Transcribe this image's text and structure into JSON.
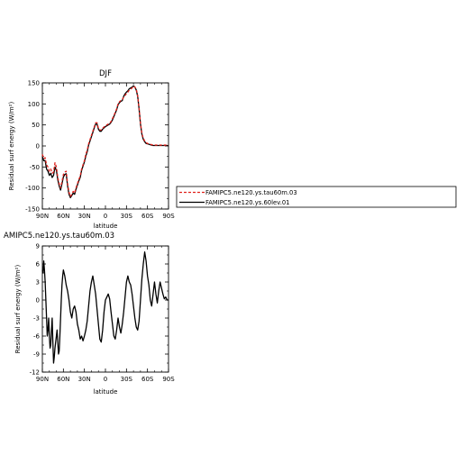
{
  "chart_data": [
    {
      "type": "line",
      "title": "DJF",
      "ylabel": "Residual surf energy (W/m²)",
      "xlabel": "latitude",
      "xlim": [
        90,
        -90
      ],
      "ylim": [
        -150,
        150
      ],
      "x_ticks": [
        {
          "value": 90,
          "label": "90N"
        },
        {
          "value": 60,
          "label": "60N"
        },
        {
          "value": 30,
          "label": "30N"
        },
        {
          "value": 0,
          "label": "0"
        },
        {
          "value": -30,
          "label": "30S"
        },
        {
          "value": -60,
          "label": "60S"
        },
        {
          "value": -90,
          "label": "90S"
        }
      ],
      "y_ticks": [
        {
          "value": 150,
          "label": "150"
        },
        {
          "value": 100,
          "label": "100"
        },
        {
          "value": 50,
          "label": "50"
        },
        {
          "value": 0,
          "label": "0"
        },
        {
          "value": -50,
          "label": "-50"
        },
        {
          "value": -100,
          "label": "-100"
        },
        {
          "value": -150,
          "label": "-150"
        }
      ],
      "legend_placement": "right",
      "series": [
        {
          "name": "FAMIPC5.ne120.ys.tau60m.03",
          "color": "#e0201b",
          "dash": "dashed",
          "x": [
            90,
            88,
            86,
            84,
            82,
            80,
            78,
            76,
            74,
            72,
            70,
            68,
            66,
            64,
            62,
            60,
            58,
            56,
            54,
            52,
            50,
            48,
            46,
            44,
            42,
            40,
            38,
            36,
            34,
            32,
            30,
            28,
            26,
            24,
            22,
            20,
            18,
            16,
            14,
            12,
            10,
            8,
            6,
            4,
            2,
            0,
            -2,
            -4,
            -6,
            -8,
            -10,
            -12,
            -14,
            -16,
            -18,
            -20,
            -22,
            -24,
            -26,
            -28,
            -30,
            -32,
            -34,
            -36,
            -38,
            -40,
            -42,
            -44,
            -46,
            -48,
            -50,
            -52,
            -54,
            -56,
            -58,
            -60,
            -62,
            -64,
            -66,
            -68,
            -70,
            -72,
            -74,
            -76,
            -78,
            -80,
            -82,
            -84,
            -86,
            -88,
            -90
          ],
          "y": [
            -20,
            -30,
            -28,
            -45,
            -50,
            -60,
            -55,
            -65,
            -62,
            -40,
            -50,
            -75,
            -90,
            -100,
            -85,
            -68,
            -62,
            -60,
            -90,
            -110,
            -120,
            -115,
            -108,
            -112,
            -100,
            -90,
            -80,
            -72,
            -55,
            -45,
            -35,
            -20,
            -10,
            5,
            15,
            25,
            35,
            45,
            55,
            55,
            42,
            38,
            38,
            42,
            45,
            48,
            50,
            52,
            54,
            58,
            65,
            72,
            80,
            88,
            100,
            105,
            108,
            110,
            116,
            120,
            125,
            128,
            133,
            135,
            138,
            142,
            140,
            135,
            120,
            90,
            55,
            30,
            18,
            12,
            8,
            6,
            5,
            4,
            3,
            2,
            2,
            2,
            2,
            2,
            2,
            2,
            2,
            2,
            2,
            2,
            2
          ]
        },
        {
          "name": "FAMIPC5.ne120.ys.60lev.01",
          "color": "#000000",
          "dash": "solid",
          "x": [
            90,
            88,
            86,
            84,
            82,
            80,
            78,
            76,
            74,
            72,
            70,
            68,
            66,
            64,
            62,
            60,
            58,
            56,
            54,
            52,
            50,
            48,
            46,
            44,
            42,
            40,
            38,
            36,
            34,
            32,
            30,
            28,
            26,
            24,
            22,
            20,
            18,
            16,
            14,
            12,
            10,
            8,
            6,
            4,
            2,
            0,
            -2,
            -4,
            -6,
            -8,
            -10,
            -12,
            -14,
            -16,
            -18,
            -20,
            -22,
            -24,
            -26,
            -28,
            -30,
            -32,
            -34,
            -36,
            -38,
            -40,
            -42,
            -44,
            -46,
            -48,
            -50,
            -52,
            -54,
            -56,
            -58,
            -60,
            -62,
            -64,
            -66,
            -68,
            -70,
            -72,
            -74,
            -76,
            -78,
            -80,
            -82,
            -84,
            -86,
            -88,
            -90
          ],
          "y": [
            -25,
            -35,
            -35,
            -55,
            -60,
            -70,
            -65,
            -75,
            -70,
            -50,
            -58,
            -80,
            -95,
            -105,
            -90,
            -74,
            -68,
            -66,
            -95,
            -115,
            -123,
            -118,
            -112,
            -115,
            -103,
            -93,
            -83,
            -75,
            -58,
            -48,
            -38,
            -24,
            -14,
            2,
            12,
            22,
            32,
            43,
            52,
            52,
            40,
            35,
            35,
            40,
            43,
            46,
            48,
            50,
            52,
            56,
            62,
            70,
            78,
            86,
            98,
            103,
            106,
            108,
            118,
            124,
            128,
            131,
            136,
            138,
            140,
            143,
            140,
            133,
            118,
            88,
            52,
            28,
            16,
            10,
            6,
            5,
            4,
            3,
            2,
            1,
            1,
            1,
            1,
            1,
            1,
            1,
            1,
            1,
            1,
            1,
            1
          ]
        }
      ]
    },
    {
      "type": "line",
      "title": "AMIPC5.ne120.ys.tau60m.03",
      "ylabel": "Residual surf energy (W/m²)",
      "xlabel": "latitude",
      "xlim": [
        90,
        -90
      ],
      "ylim": [
        -12,
        9
      ],
      "x_ticks": [
        {
          "value": 90,
          "label": "90N"
        },
        {
          "value": 60,
          "label": "60N"
        },
        {
          "value": 30,
          "label": "30N"
        },
        {
          "value": 0,
          "label": "0"
        },
        {
          "value": -30,
          "label": "30S"
        },
        {
          "value": -60,
          "label": "60S"
        },
        {
          "value": -90,
          "label": "90S"
        }
      ],
      "y_ticks": [
        {
          "value": 9,
          "label": "9"
        },
        {
          "value": 6,
          "label": "6"
        },
        {
          "value": 3,
          "label": "3"
        },
        {
          "value": 0,
          "label": "0"
        },
        {
          "value": -3,
          "label": "-3"
        },
        {
          "value": -6,
          "label": "-6"
        },
        {
          "value": -9,
          "label": "-9"
        },
        {
          "value": -12,
          "label": "-12"
        }
      ],
      "series": [
        {
          "color": "#000000",
          "dash": "solid",
          "x": [
            90,
            89,
            88,
            87,
            86,
            85,
            84,
            83,
            82,
            81,
            80,
            79,
            78,
            77,
            76,
            75,
            74,
            73,
            72,
            71,
            70,
            69,
            68,
            67,
            66,
            65,
            64,
            63,
            62,
            61,
            60,
            58,
            56,
            54,
            52,
            50,
            48,
            46,
            44,
            42,
            40,
            38,
            36,
            34,
            32,
            30,
            28,
            26,
            24,
            22,
            20,
            18,
            16,
            14,
            12,
            10,
            8,
            6,
            4,
            2,
            0,
            -2,
            -4,
            -6,
            -8,
            -10,
            -12,
            -14,
            -16,
            -18,
            -20,
            -22,
            -24,
            -26,
            -28,
            -30,
            -32,
            -34,
            -36,
            -38,
            -40,
            -42,
            -44,
            -46,
            -48,
            -50,
            -52,
            -54,
            -56,
            -58,
            -60,
            -62,
            -64,
            -66,
            -68,
            -70,
            -72,
            -74,
            -76,
            -78,
            -80,
            -82,
            -84,
            -86,
            -88,
            -90
          ],
          "y": [
            5,
            4.5,
            6.5,
            5,
            3,
            0,
            -3,
            -6,
            -5,
            -3,
            -6,
            -8,
            -7.5,
            -5,
            -3,
            -7,
            -10.5,
            -9.5,
            -8,
            -7,
            -6,
            -5,
            -7,
            -9,
            -8.5,
            -6,
            -3,
            0,
            2.5,
            4,
            5,
            4,
            2.5,
            1.5,
            0,
            -2,
            -3,
            -1.5,
            -1,
            -2,
            -4,
            -5,
            -6.5,
            -6,
            -6.8,
            -6,
            -5,
            -3.5,
            -1,
            1.5,
            3,
            4,
            2.5,
            1,
            -1.5,
            -4,
            -6.5,
            -7,
            -5,
            -2,
            0,
            0.5,
            1,
            0.2,
            -2,
            -4,
            -6,
            -6.5,
            -5,
            -3,
            -4.5,
            -5.5,
            -4,
            -2,
            0.5,
            3,
            4,
            3,
            2.5,
            1,
            -1,
            -3,
            -4.5,
            -5,
            -3.5,
            0,
            3.5,
            6,
            8,
            6.5,
            4,
            2.5,
            0,
            -1,
            1,
            3,
            1,
            -0.5,
            1.5,
            3,
            2,
            1,
            0.2,
            0.5,
            0,
            0
          ]
        }
      ]
    }
  ]
}
